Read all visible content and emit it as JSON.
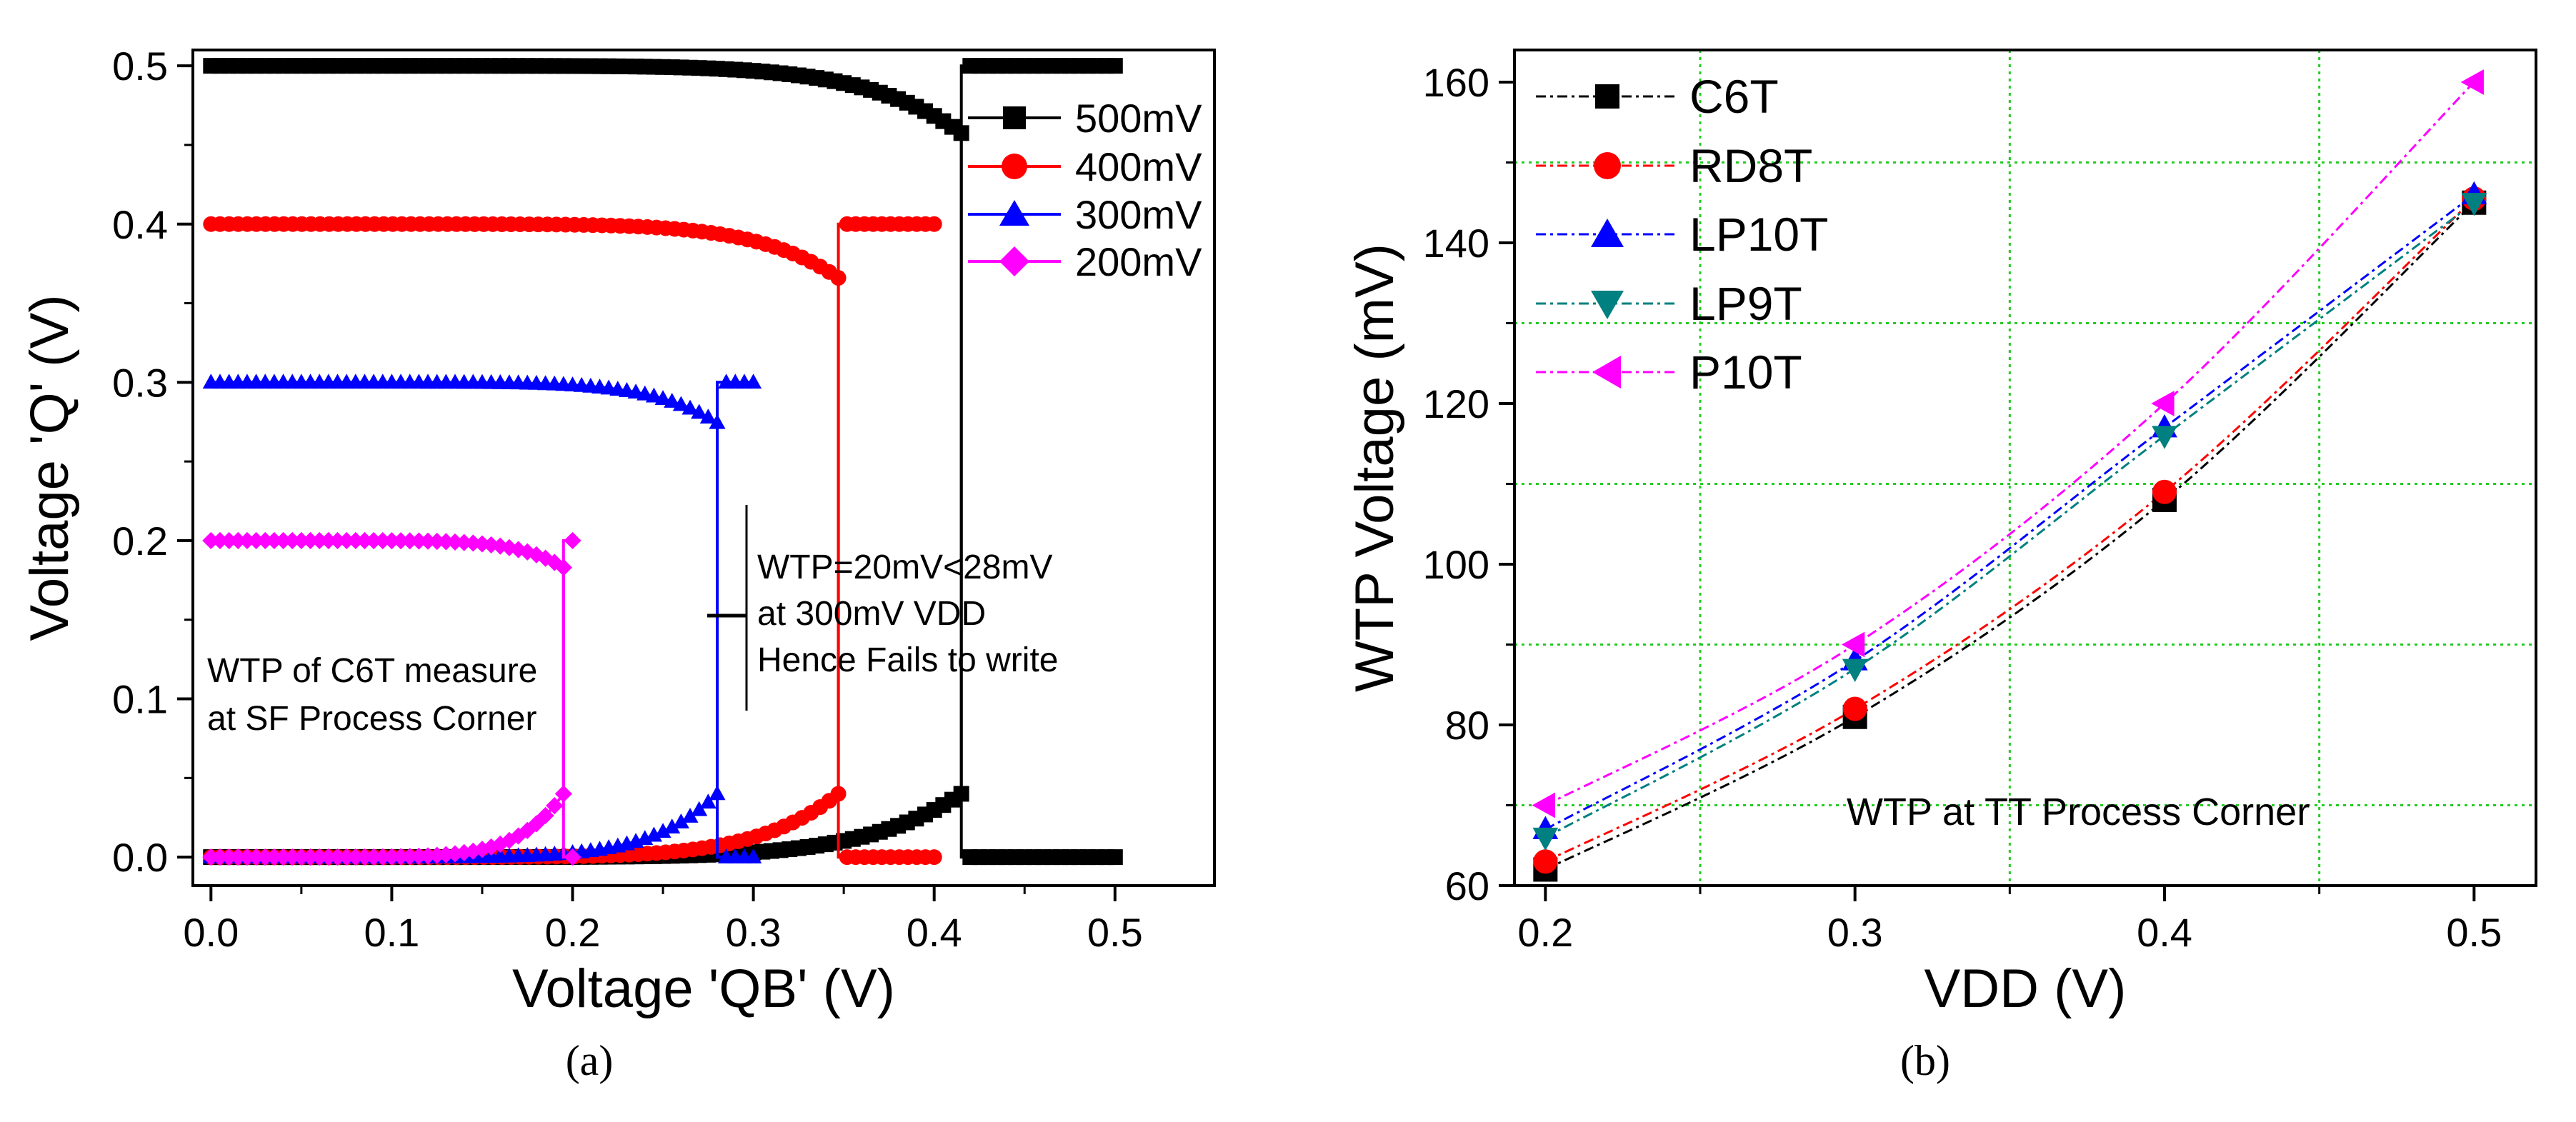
{
  "chart_data": [
    {
      "type": "line",
      "panel_label": "(a)",
      "xlabel": "Voltage 'QB' (V)",
      "ylabel": "Voltage 'Q' (V)",
      "xlim": [
        -0.01,
        0.555
      ],
      "ylim": [
        -0.018,
        0.51
      ],
      "xticks": [
        0.0,
        0.1,
        0.2,
        0.3,
        0.4,
        0.5
      ],
      "xtick_labels": [
        "0.0",
        "0.1",
        "0.2",
        "0.3",
        "0.4",
        "0.5"
      ],
      "yticks": [
        0.0,
        0.1,
        0.2,
        0.3,
        0.4,
        0.5
      ],
      "ytick_labels": [
        "0.0",
        "0.1",
        "0.2",
        "0.3",
        "0.4",
        "0.5"
      ],
      "grid": false,
      "legend_position": "top-right",
      "annotations": {
        "wtp_note_lines": [
          "WTP=20mV<28mV",
          "at 300mV VDD",
          "Hence Fails to write"
        ],
        "measure_note_lines": [
          "WTP of C6T measure",
          "at SF Process Corner"
        ]
      },
      "series": [
        {
          "name": "500mV",
          "vdd": 0.5,
          "color": "#000000",
          "marker": "square",
          "switch_x": 0.415
        },
        {
          "name": "400mV",
          "vdd": 0.4,
          "color": "#ff0000",
          "marker": "circle",
          "switch_x": 0.347
        },
        {
          "name": "300mV",
          "vdd": 0.3,
          "color": "#0000ff",
          "marker": "triangle-up",
          "switch_x": 0.28
        },
        {
          "name": "200mV",
          "vdd": 0.2,
          "color": "#ff00ff",
          "marker": "diamond",
          "switch_x": 0.195
        }
      ]
    },
    {
      "type": "line",
      "panel_label": "(b)",
      "xlabel": "VDD (V)",
      "ylabel": "WTP Voltage (mV)",
      "xlim": [
        0.19,
        0.52
      ],
      "ylim": [
        60,
        164
      ],
      "xticks": [
        0.2,
        0.3,
        0.4,
        0.5
      ],
      "xtick_labels": [
        "0.2",
        "0.3",
        "0.4",
        "0.5"
      ],
      "yticks": [
        60,
        80,
        100,
        120,
        140,
        160
      ],
      "ytick_labels": [
        "60",
        "80",
        "100",
        "120",
        "140",
        "160"
      ],
      "grid": true,
      "grid_color": "#22cc22",
      "legend_position": "top-left",
      "annotation": "WTP at TT Process Corner",
      "x": [
        0.2,
        0.3,
        0.4,
        0.5
      ],
      "series": [
        {
          "name": "C6T",
          "values": [
            62,
            81,
            108,
            145
          ],
          "color": "#000000",
          "marker": "square"
        },
        {
          "name": "RD8T",
          "values": [
            63,
            82,
            109,
            145.5
          ],
          "color": "#ff0000",
          "marker": "circle"
        },
        {
          "name": "LP10T",
          "values": [
            67,
            88,
            117,
            146
          ],
          "color": "#0000ff",
          "marker": "triangle-up"
        },
        {
          "name": "LP9T",
          "values": [
            66,
            87,
            116,
            145
          ],
          "color": "#008080",
          "marker": "triangle-down"
        },
        {
          "name": "P10T",
          "values": [
            70,
            90,
            120,
            160
          ],
          "color": "#ff00ff",
          "marker": "triangle-left"
        }
      ]
    }
  ]
}
